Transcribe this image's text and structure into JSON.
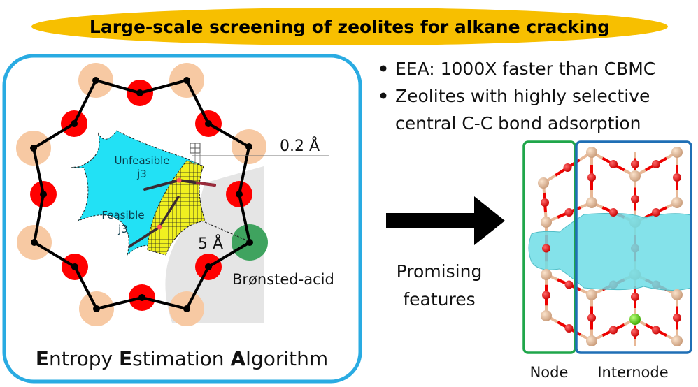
{
  "title": "Large-scale screening of zeolites for alkane cracking",
  "colors": {
    "banner": "#f7bf00",
    "panel_border": "#29abe2",
    "oxygen": "#ff0000",
    "silicon": "#f7c9a3",
    "acid_site": "#3fa35f",
    "feasible_region": "#f0f020",
    "unfeasible_region": "#22e1f5",
    "node_box": "#1fa64a",
    "internode_box": "#1f6fb5",
    "adsorption_surface": "#6fdde6"
  },
  "left_panel": {
    "unfeasible_label": "Unfeasible",
    "unfeasible_sub": "j3",
    "feasible_label": "Feasible",
    "feasible_sub": "j3",
    "grid_spacing": "0.2 Å",
    "radius": "5 Å",
    "acid_label": "Brønsted-acid",
    "caption": {
      "parts": [
        {
          "bold": "E",
          "rest": "ntropy "
        },
        {
          "bold": "E",
          "rest": "stimation "
        },
        {
          "bold": "A",
          "rest": "lgorithm"
        }
      ]
    }
  },
  "bullets": [
    "EEA: 1000X faster than CBMC",
    "Zeolites with highly selective",
    "central C-C bond adsorption"
  ],
  "arrow_label": [
    "Promising",
    "features"
  ],
  "structure": {
    "node_label": "Node",
    "internode_label": "Internode"
  }
}
